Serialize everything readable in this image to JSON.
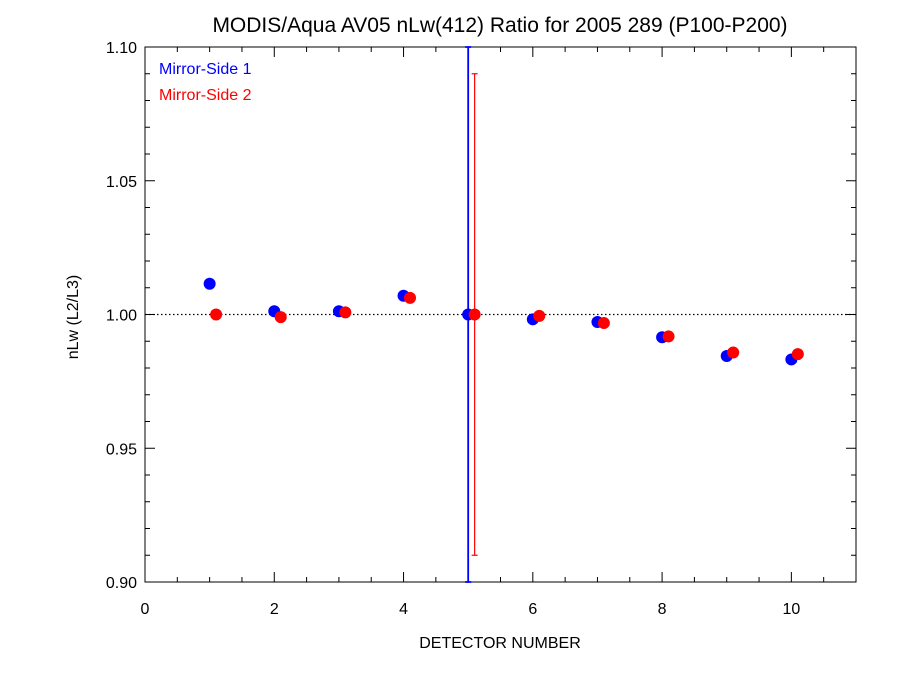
{
  "chart_data": {
    "type": "scatter",
    "title": "MODIS/Aqua AV05 nLw(412) Ratio for 2005 289 (P100-P200)",
    "xlabel": "DETECTOR NUMBER",
    "ylabel": "nLw (L2/L3)",
    "xlim": [
      0,
      11
    ],
    "ylim": [
      0.9,
      1.1
    ],
    "x_ticks": [
      "0",
      "2",
      "4",
      "6",
      "8",
      "10"
    ],
    "y_ticks": [
      "0.90",
      "0.95",
      "1.00",
      "1.05",
      "1.10"
    ],
    "reference_line": 1.0,
    "legend_position": "top-left",
    "series": [
      {
        "name": "Mirror-Side 1",
        "color": "#0000ff",
        "x": [
          1,
          2,
          3,
          4,
          5,
          6,
          7,
          8,
          9,
          10
        ],
        "y": [
          1.0115,
          1.0012,
          1.0012,
          1.007,
          1.0,
          0.9982,
          0.9972,
          0.9915,
          0.9845,
          0.9832
        ],
        "error_bars": [
          {
            "x": 5,
            "low": 0.9,
            "high": 1.1
          }
        ]
      },
      {
        "name": "Mirror-Side 2",
        "color": "#ff0000",
        "x": [
          1.1,
          2.1,
          3.1,
          4.1,
          5.1,
          6.1,
          7.1,
          8.1,
          9.1,
          10.1
        ],
        "y": [
          1.0,
          0.999,
          1.0008,
          1.0062,
          1.0,
          0.9995,
          0.9968,
          0.9918,
          0.9858,
          0.9852
        ],
        "error_bars": [
          {
            "x": 5.1,
            "low": 0.91,
            "high": 1.09
          }
        ]
      }
    ]
  }
}
